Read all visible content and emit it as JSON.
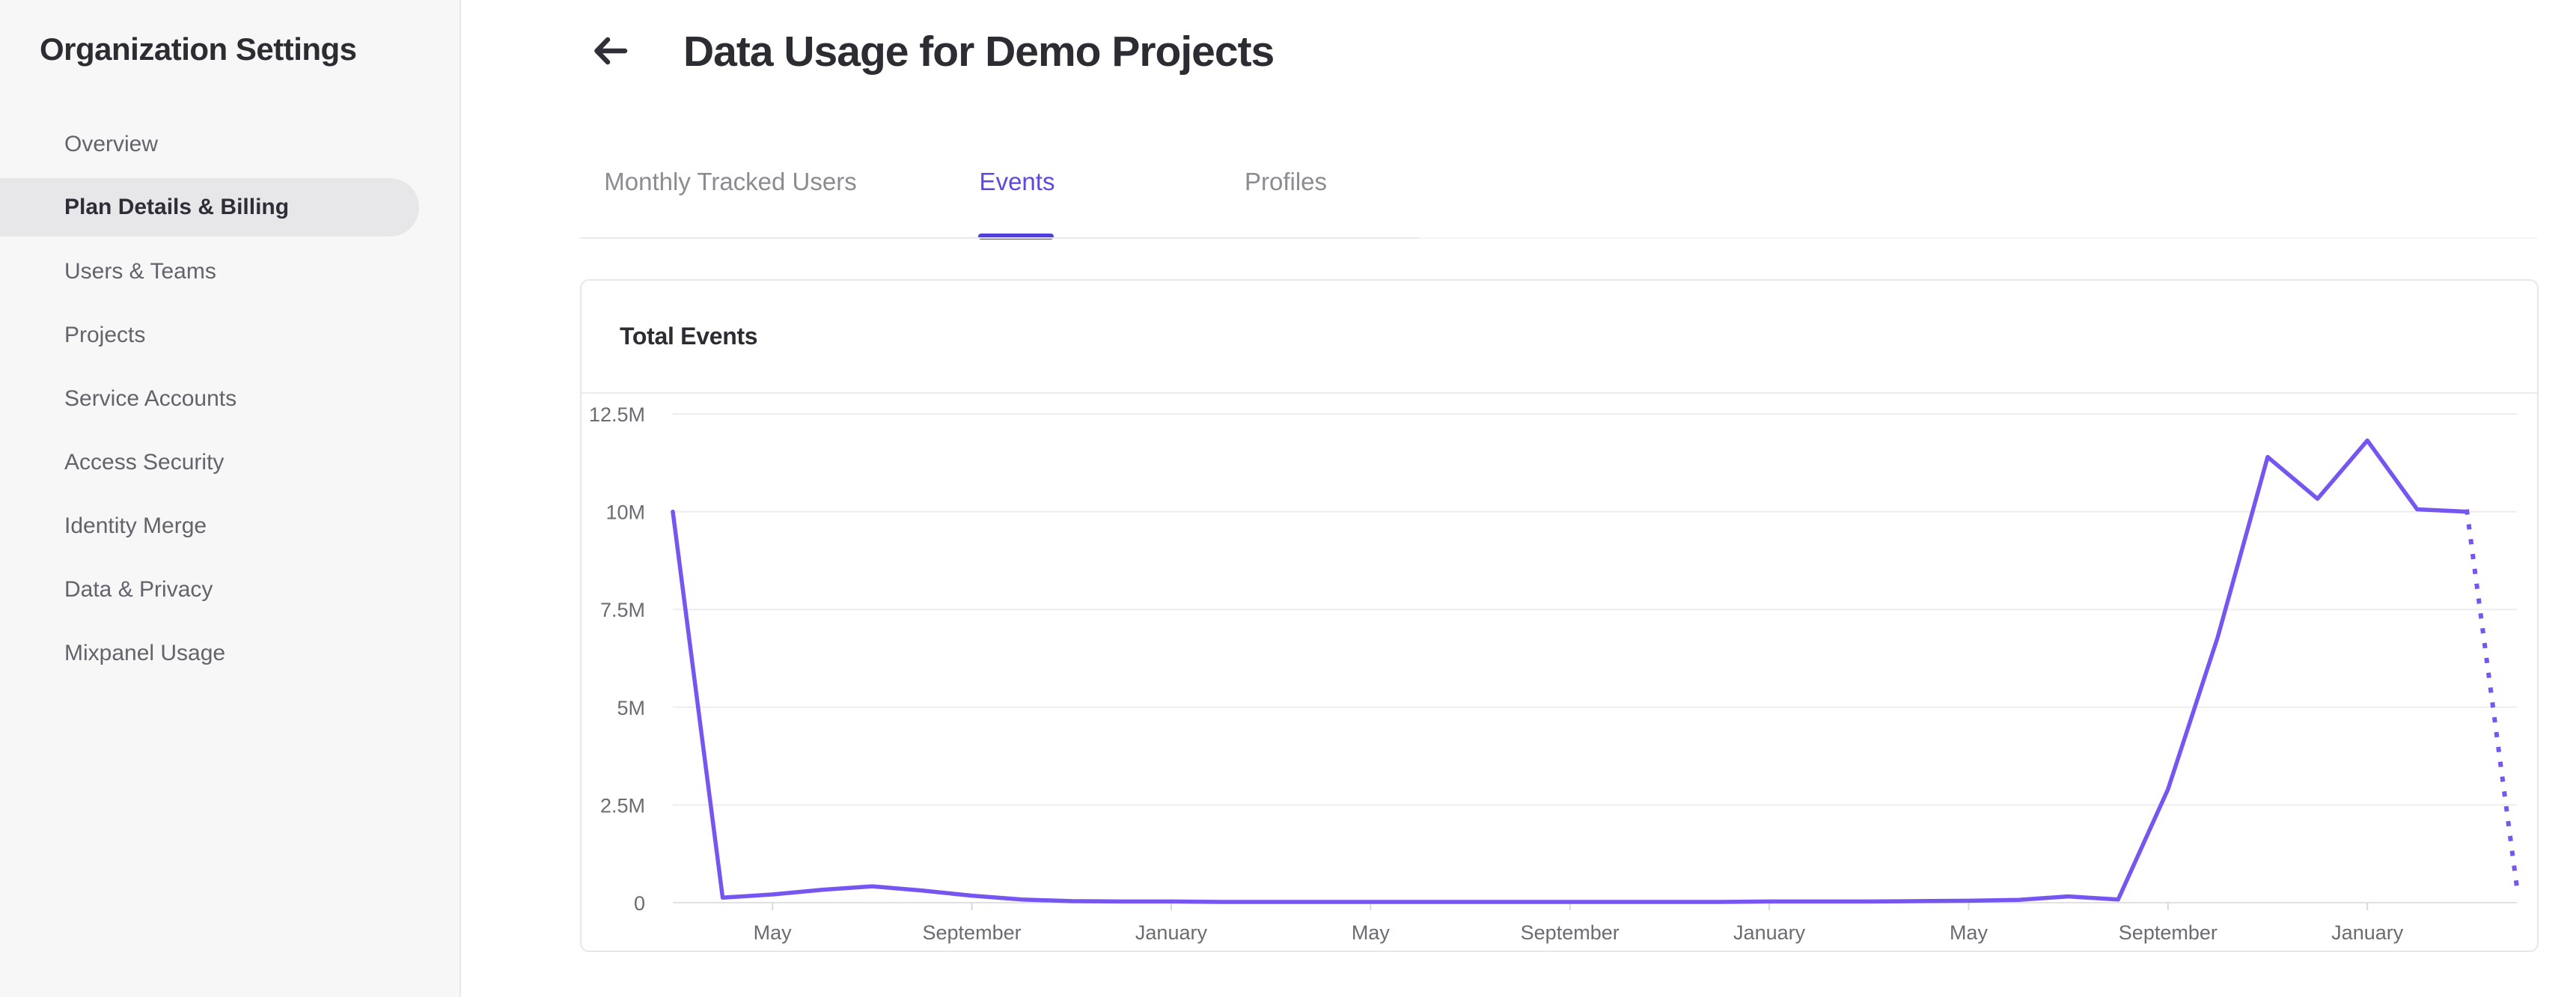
{
  "sidebar": {
    "title": "Organization Settings",
    "items": [
      {
        "label": "Overview",
        "selected": false
      },
      {
        "label": "Plan Details & Billing",
        "selected": true
      },
      {
        "label": "Users & Teams",
        "selected": false
      },
      {
        "label": "Projects",
        "selected": false
      },
      {
        "label": "Service Accounts",
        "selected": false
      },
      {
        "label": "Access Security",
        "selected": false
      },
      {
        "label": "Identity Merge",
        "selected": false
      },
      {
        "label": "Data & Privacy",
        "selected": false
      },
      {
        "label": "Mixpanel Usage",
        "selected": false
      }
    ]
  },
  "header": {
    "back_icon": "left-arrow-icon",
    "title": "Data Usage for Demo Projects"
  },
  "tabs": [
    {
      "label": "Monthly Tracked Users",
      "active": false
    },
    {
      "label": "Events",
      "active": true
    },
    {
      "label": "Profiles",
      "active": false
    }
  ],
  "card": {
    "title": "Total Events"
  },
  "colors": {
    "accent_text": "#5b49e0",
    "accent_underline": "#5040d8",
    "chart_line": "#7656f0",
    "gridline": "#ededef",
    "axis_line": "#e1e1e4",
    "axis_tick": "#d9d9db",
    "axis_label": "#6b6b73"
  },
  "chart_data": {
    "type": "line",
    "title": "Total Events",
    "unit": "millions of events",
    "grid": true,
    "legend": false,
    "ylim": [
      0,
      12.5
    ],
    "x": [
      "2022-03",
      "2022-04",
      "2022-05",
      "2022-06",
      "2022-07",
      "2022-08",
      "2022-09",
      "2022-10",
      "2022-11",
      "2022-12",
      "2023-01",
      "2023-02",
      "2023-03",
      "2023-04",
      "2023-05",
      "2023-06",
      "2023-07",
      "2023-08",
      "2023-09",
      "2023-10",
      "2023-11",
      "2023-12",
      "2024-01",
      "2024-02",
      "2024-03",
      "2024-04",
      "2024-05",
      "2024-06",
      "2024-07",
      "2024-08",
      "2024-09",
      "2024-10",
      "2024-11",
      "2024-12",
      "2025-01",
      "2025-02",
      "2025-03",
      "2025-04"
    ],
    "values_millions": [
      10.0,
      0.13,
      0.21,
      0.33,
      0.42,
      0.31,
      0.18,
      0.08,
      0.04,
      0.03,
      0.03,
      0.02,
      0.02,
      0.02,
      0.02,
      0.02,
      0.02,
      0.02,
      0.02,
      0.02,
      0.02,
      0.02,
      0.03,
      0.03,
      0.03,
      0.04,
      0.05,
      0.07,
      0.16,
      0.08,
      2.9,
      6.8,
      11.4,
      10.33,
      11.82,
      10.06,
      10.0,
      0.4
    ],
    "final_segment_dotted_projection": true,
    "y_ticks": [
      {
        "value": 0,
        "label": "0"
      },
      {
        "value": 2.5,
        "label": "2.5M"
      },
      {
        "value": 5,
        "label": "5M"
      },
      {
        "value": 7.5,
        "label": "7.5M"
      },
      {
        "value": 10,
        "label": "10M"
      },
      {
        "value": 12.5,
        "label": "12.5M"
      }
    ],
    "x_tick_labels": [
      {
        "index": 2,
        "label": "May"
      },
      {
        "index": 6,
        "label": "September"
      },
      {
        "index": 10,
        "label": "January"
      },
      {
        "index": 14,
        "label": "May"
      },
      {
        "index": 18,
        "label": "September"
      },
      {
        "index": 22,
        "label": "January"
      },
      {
        "index": 26,
        "label": "May"
      },
      {
        "index": 30,
        "label": "September"
      },
      {
        "index": 34,
        "label": "January"
      }
    ]
  }
}
